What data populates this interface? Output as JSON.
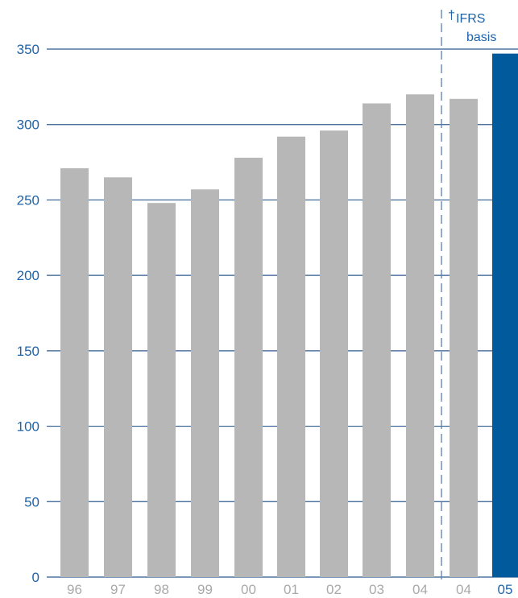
{
  "chart_data": {
    "type": "bar",
    "title": "",
    "xlabel": "",
    "ylabel": "",
    "categories": [
      "96",
      "97",
      "98",
      "99",
      "00",
      "01",
      "02",
      "03",
      "04",
      "04",
      "05"
    ],
    "values": [
      271,
      265,
      248,
      257,
      278,
      292,
      296,
      314,
      320,
      317,
      347
    ],
    "ylim": [
      0,
      350
    ],
    "yticks": [
      0,
      50,
      100,
      150,
      200,
      250,
      300,
      350
    ],
    "grid": true,
    "annotation": {
      "marker": "†",
      "line1": "IFRS",
      "line2": "basis"
    },
    "colors": {
      "bar": "#b7b7b7",
      "highlight_bar": "#005a9c",
      "axis_text": "#1f63a8",
      "gridline": "#2f5b8f",
      "category_text": "#a9a9a9",
      "highlight_text": "#1f63a8",
      "divider": "#5b7fb0"
    }
  }
}
